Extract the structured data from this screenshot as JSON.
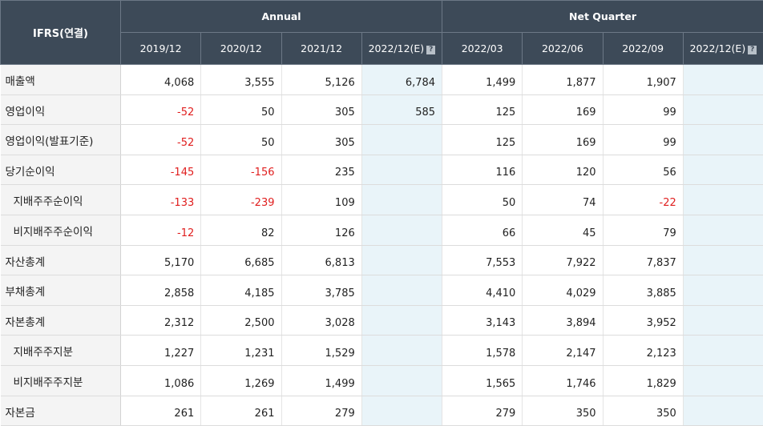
{
  "header": {
    "corner_label": "IFRS(연결)",
    "groups": {
      "annual": "Annual",
      "quarter": "Net Quarter"
    },
    "annual_periods": [
      "2019/12",
      "2020/12",
      "2021/12",
      "2022/12(E)"
    ],
    "quarter_periods": [
      "2022/03",
      "2022/06",
      "2022/09",
      "2022/12(E)"
    ],
    "estimate_icon": "info-icon"
  },
  "colors": {
    "header_bg": "#3d4a58",
    "estimate_bg": "#e9f4f9",
    "negative": "#e01e1e"
  },
  "rows": [
    {
      "label": "매출액",
      "indent": false,
      "values": [
        "4,068",
        "3,555",
        "5,126",
        "6,784",
        "1,499",
        "1,877",
        "1,907",
        ""
      ]
    },
    {
      "label": "영업이익",
      "indent": false,
      "values": [
        "-52",
        "50",
        "305",
        "585",
        "125",
        "169",
        "99",
        ""
      ]
    },
    {
      "label": "영업이익(발표기준)",
      "indent": false,
      "values": [
        "-52",
        "50",
        "305",
        "",
        "125",
        "169",
        "99",
        ""
      ]
    },
    {
      "label": "당기순이익",
      "indent": false,
      "values": [
        "-145",
        "-156",
        "235",
        "",
        "116",
        "120",
        "56",
        ""
      ]
    },
    {
      "label": "지배주주순이익",
      "indent": true,
      "values": [
        "-133",
        "-239",
        "109",
        "",
        "50",
        "74",
        "-22",
        ""
      ]
    },
    {
      "label": "비지배주주순이익",
      "indent": true,
      "values": [
        "-12",
        "82",
        "126",
        "",
        "66",
        "45",
        "79",
        ""
      ]
    },
    {
      "label": "자산총계",
      "indent": false,
      "values": [
        "5,170",
        "6,685",
        "6,813",
        "",
        "7,553",
        "7,922",
        "7,837",
        ""
      ]
    },
    {
      "label": "부채총계",
      "indent": false,
      "values": [
        "2,858",
        "4,185",
        "3,785",
        "",
        "4,410",
        "4,029",
        "3,885",
        ""
      ]
    },
    {
      "label": "자본총계",
      "indent": false,
      "values": [
        "2,312",
        "2,500",
        "3,028",
        "",
        "3,143",
        "3,894",
        "3,952",
        ""
      ]
    },
    {
      "label": "지배주주지분",
      "indent": true,
      "values": [
        "1,227",
        "1,231",
        "1,529",
        "",
        "1,578",
        "2,147",
        "2,123",
        ""
      ]
    },
    {
      "label": "비지배주주지분",
      "indent": true,
      "values": [
        "1,086",
        "1,269",
        "1,499",
        "",
        "1,565",
        "1,746",
        "1,829",
        ""
      ]
    },
    {
      "label": "자본금",
      "indent": false,
      "values": [
        "261",
        "261",
        "279",
        "",
        "279",
        "350",
        "350",
        ""
      ]
    }
  ]
}
